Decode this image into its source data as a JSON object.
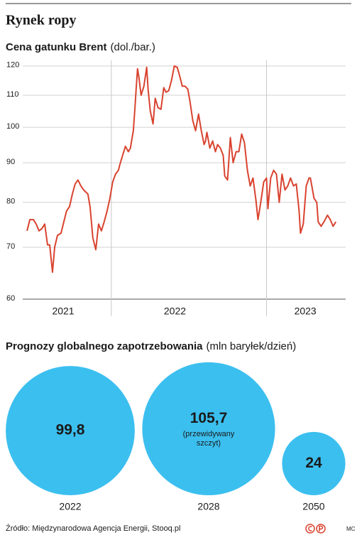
{
  "title": "Rynek ropy",
  "chart_data": [
    {
      "type": "line",
      "title": "Cena gatunku Brent",
      "unit": "(dol./bar.)",
      "color": "#d9432f",
      "x": [
        2021.457,
        2021.475,
        2021.498,
        2021.516,
        2021.534,
        2021.553,
        2021.571,
        2021.589,
        2021.603,
        2021.621,
        2021.635,
        2021.653,
        2021.676,
        2021.694,
        2021.712,
        2021.731,
        2021.749,
        2021.767,
        2021.785,
        2021.804,
        2021.822,
        2021.849,
        2021.863,
        2021.881,
        2021.9,
        2021.918,
        2021.936,
        2021.954,
        2021.973,
        2021.991,
        2022.009,
        2022.027,
        2022.046,
        2022.055,
        2022.073,
        2022.091,
        2022.11,
        2022.123,
        2022.142,
        2022.151,
        2022.16,
        2022.169,
        2022.178,
        2022.192,
        2022.21,
        2022.228,
        2022.237,
        2022.251,
        2022.269,
        2022.283,
        2022.301,
        2022.32,
        2022.338,
        2022.352,
        2022.37,
        2022.388,
        2022.406,
        2022.425,
        2022.443,
        2022.457,
        2022.475,
        2022.493,
        2022.507,
        2022.525,
        2022.543,
        2022.562,
        2022.58,
        2022.598,
        2022.607,
        2022.616,
        2022.635,
        2022.653,
        2022.671,
        2022.685,
        2022.703,
        2022.721,
        2022.731,
        2022.749,
        2022.767,
        2022.785,
        2022.804,
        2022.822,
        2022.84,
        2022.858,
        2022.877,
        2022.895,
        2022.913,
        2022.932,
        2022.945,
        2022.963,
        2022.982,
        2023.0,
        2023.009,
        2023.027,
        2023.046,
        2023.064,
        2023.082,
        2023.1,
        2023.119,
        2023.137,
        2023.155,
        2023.174,
        2023.192,
        2023.21,
        2023.219,
        2023.237,
        2023.256,
        2023.274,
        2023.283,
        2023.306,
        2023.324,
        2023.333,
        2023.352,
        2023.37,
        2023.393,
        2023.411,
        2023.429,
        2023.447
      ],
      "values": [
        73.5,
        76,
        76,
        75,
        73.5,
        74,
        75,
        70.5,
        70.5,
        65,
        70,
        72.5,
        73,
        75.5,
        78,
        79,
        82,
        84.5,
        85.5,
        84,
        83,
        82,
        79,
        72,
        69.5,
        75,
        73.5,
        75.5,
        78,
        81,
        85,
        87,
        88,
        89.5,
        92,
        94.5,
        93,
        94,
        99,
        105,
        112,
        119,
        116,
        110,
        113,
        119.5,
        112,
        105,
        101,
        109,
        106,
        105.5,
        112.5,
        111,
        111.5,
        115,
        120,
        119.5,
        116,
        113,
        113,
        112,
        108,
        102,
        99,
        104,
        99,
        95,
        96,
        98.5,
        94,
        96,
        93,
        95,
        94,
        92,
        86.5,
        85.5,
        97,
        90,
        93,
        93,
        98,
        95.5,
        88,
        84,
        86,
        80.5,
        76,
        80,
        85,
        86,
        78.5,
        86,
        88,
        87,
        80,
        87,
        83,
        84,
        86,
        84,
        84.5,
        78,
        73,
        75,
        84,
        86,
        86,
        81,
        80,
        75.5,
        74.5,
        75.5,
        77,
        76,
        74.5,
        75.5
      ],
      "xlim": [
        2021.42,
        2023.51
      ],
      "ylim": [
        60,
        122
      ],
      "log_scale": true,
      "yticks": [
        60,
        70,
        80,
        90,
        100,
        110,
        120
      ],
      "xticks": [
        {
          "value": 2021.69,
          "label": "2021"
        },
        {
          "value": 2022.41,
          "label": "2022"
        },
        {
          "value": 2023.25,
          "label": "2023"
        }
      ],
      "xgrid": [
        2022,
        2023
      ],
      "grid": true
    },
    {
      "type": "bubble",
      "title": "Prognozy globalnego zapotrzebowania",
      "unit": "(mln baryłek/dzień)",
      "color": "#3bbfef",
      "categories": [
        "2022",
        "2028",
        "2050"
      ],
      "values": [
        99.8,
        105.7,
        24
      ],
      "value_labels": [
        "99,8",
        "105,7",
        "24"
      ],
      "value_notes": [
        null,
        "(przewidywany szczyt)",
        null
      ]
    }
  ],
  "source": "Źródło: Międzynarodowa Agencja Energii, Stooq.pl",
  "credit": "MC"
}
